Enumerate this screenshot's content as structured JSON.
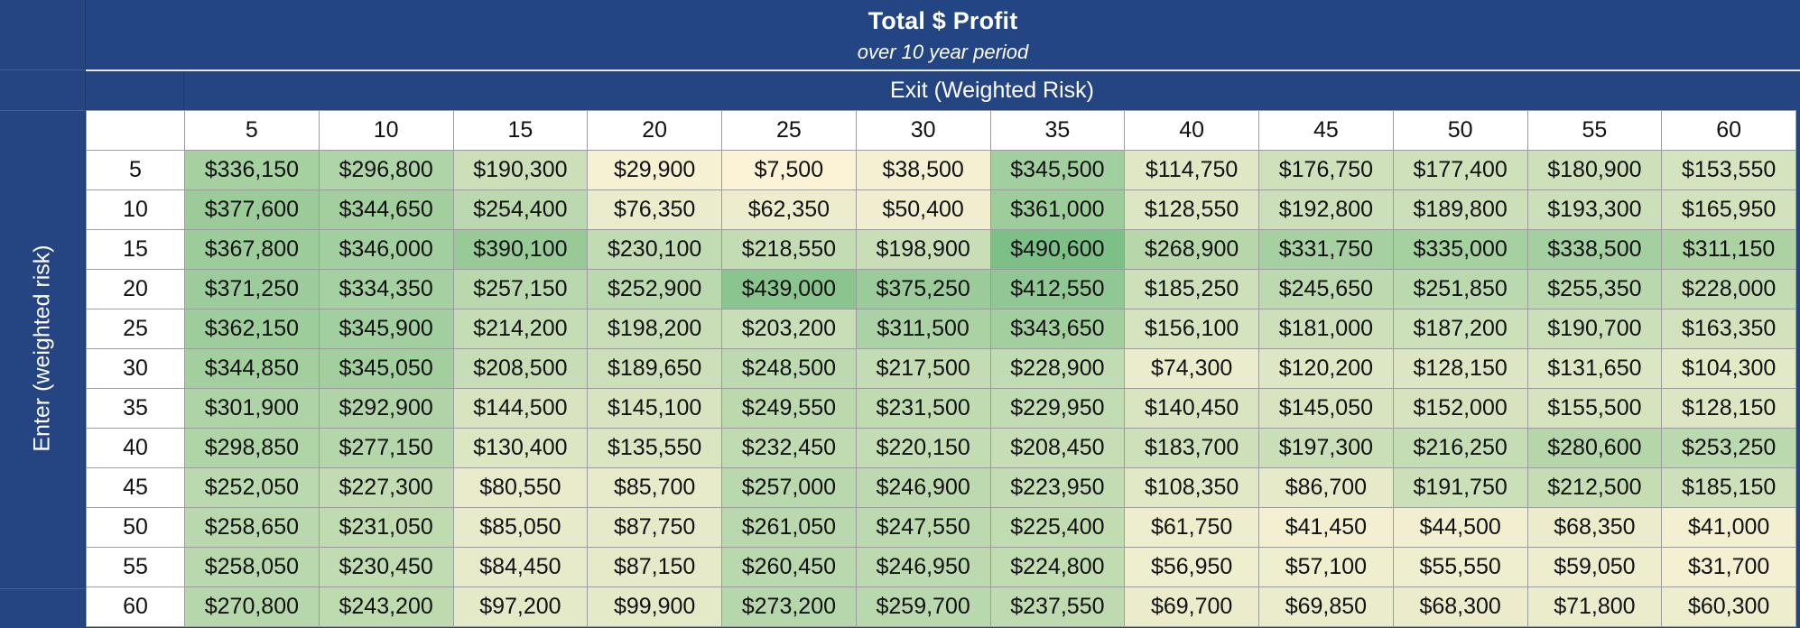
{
  "title": "Total $ Profit",
  "subtitle": "over 10 year period",
  "column_axis_label": "Exit (Weighted Risk)",
  "row_axis_label": "Enter (weighted risk)",
  "columns": [
    "5",
    "10",
    "15",
    "20",
    "25",
    "30",
    "35",
    "40",
    "45",
    "50",
    "55",
    "60"
  ],
  "rows": [
    {
      "label": "5",
      "values": [
        "$336,150",
        "$296,800",
        "$190,300",
        "$29,900",
        "$7,500",
        "$38,500",
        "$345,500",
        "$114,750",
        "$176,750",
        "$177,400",
        "$180,900",
        "$153,550"
      ]
    },
    {
      "label": "10",
      "values": [
        "$377,600",
        "$344,650",
        "$254,400",
        "$76,350",
        "$62,350",
        "$50,400",
        "$361,000",
        "$128,550",
        "$192,800",
        "$189,800",
        "$193,300",
        "$165,950"
      ]
    },
    {
      "label": "15",
      "values": [
        "$367,800",
        "$346,000",
        "$390,100",
        "$230,100",
        "$218,550",
        "$198,900",
        "$490,600",
        "$268,900",
        "$331,750",
        "$335,000",
        "$338,500",
        "$311,150"
      ]
    },
    {
      "label": "20",
      "values": [
        "$371,250",
        "$334,350",
        "$257,150",
        "$252,900",
        "$439,000",
        "$375,250",
        "$412,550",
        "$185,250",
        "$245,650",
        "$251,850",
        "$255,350",
        "$228,000"
      ]
    },
    {
      "label": "25",
      "values": [
        "$362,150",
        "$345,900",
        "$214,200",
        "$198,200",
        "$203,200",
        "$311,500",
        "$343,650",
        "$156,100",
        "$181,000",
        "$187,200",
        "$190,700",
        "$163,350"
      ]
    },
    {
      "label": "30",
      "values": [
        "$344,850",
        "$345,050",
        "$208,500",
        "$189,650",
        "$248,500",
        "$217,500",
        "$228,900",
        "$74,300",
        "$120,200",
        "$128,150",
        "$131,650",
        "$104,300"
      ]
    },
    {
      "label": "35",
      "values": [
        "$301,900",
        "$292,900",
        "$144,500",
        "$145,100",
        "$249,550",
        "$231,500",
        "$229,950",
        "$140,450",
        "$145,050",
        "$152,000",
        "$155,500",
        "$128,150"
      ]
    },
    {
      "label": "40",
      "values": [
        "$298,850",
        "$277,150",
        "$130,400",
        "$135,550",
        "$232,450",
        "$220,150",
        "$208,450",
        "$183,700",
        "$197,300",
        "$216,250",
        "$280,600",
        "$253,250"
      ]
    },
    {
      "label": "45",
      "values": [
        "$252,050",
        "$227,300",
        "$80,550",
        "$85,700",
        "$257,000",
        "$246,900",
        "$223,950",
        "$108,350",
        "$86,700",
        "$191,750",
        "$212,500",
        "$185,150"
      ]
    },
    {
      "label": "50",
      "values": [
        "$258,650",
        "$231,050",
        "$85,050",
        "$87,750",
        "$261,050",
        "$247,550",
        "$225,400",
        "$61,750",
        "$41,450",
        "$44,500",
        "$68,350",
        "$41,000"
      ]
    },
    {
      "label": "55",
      "values": [
        "$258,050",
        "$230,450",
        "$84,450",
        "$87,150",
        "$260,450",
        "$246,950",
        "$224,800",
        "$56,950",
        "$57,100",
        "$55,550",
        "$59,050",
        "$31,700"
      ]
    },
    {
      "label": "60",
      "values": [
        "$270,800",
        "$243,200",
        "$97,200",
        "$99,900",
        "$273,200",
        "$259,700",
        "$237,550",
        "$69,700",
        "$69,850",
        "$68,300",
        "$71,800",
        "$60,300"
      ]
    }
  ],
  "colors": {
    "header_bg": "#244583",
    "header_text": "#ffffff",
    "scale_low": "#fcf3d6",
    "scale_high": "#7cbf87"
  }
}
